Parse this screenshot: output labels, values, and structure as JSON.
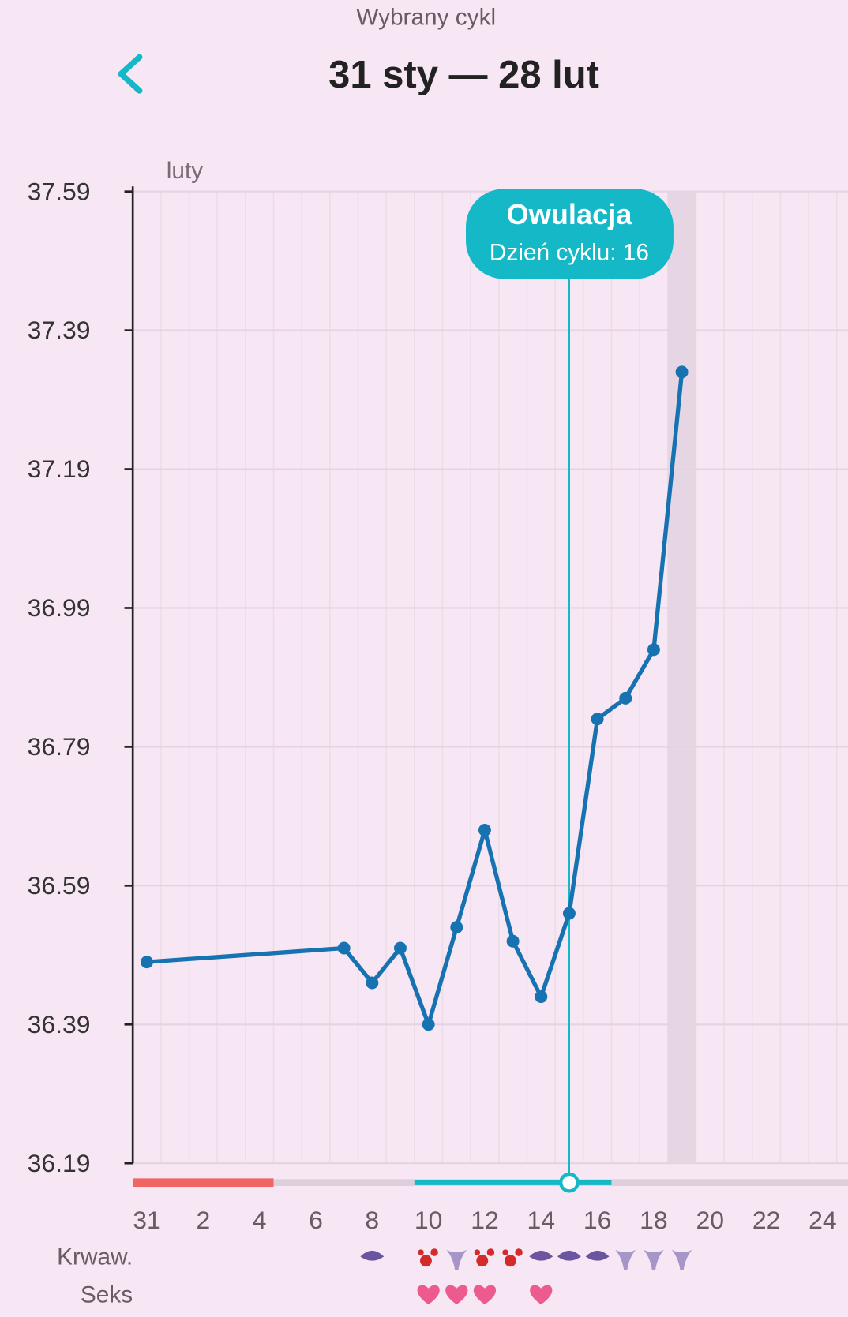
{
  "header": {
    "subtitle": "Wybrany cykl",
    "title": "31 sty — 28 lut"
  },
  "chart_data": {
    "type": "line",
    "month_label": "luty",
    "x": [
      0,
      7,
      8,
      9,
      10,
      11,
      12,
      13,
      14,
      15,
      16,
      17,
      18,
      19
    ],
    "values": [
      36.48,
      36.5,
      36.45,
      36.5,
      36.39,
      36.53,
      36.67,
      36.51,
      36.43,
      36.55,
      36.83,
      36.86,
      36.93,
      37.33
    ],
    "color": "#1672b0",
    "xlim": [
      -0.5,
      24.9
    ],
    "xticks": [
      {
        "value": 0,
        "label": "31"
      },
      2,
      4,
      6,
      8,
      10,
      12,
      14,
      16,
      18,
      20,
      22,
      24
    ],
    "ylim": [
      36.19,
      37.59
    ],
    "yticks": [
      36.19,
      36.39,
      36.59,
      36.79,
      36.99,
      37.19,
      37.39,
      37.59
    ],
    "grid": true,
    "annotation": {
      "title": "Owulacja",
      "text": "Dzień cyklu: 16",
      "x": 15
    },
    "today": 19,
    "period_range": [
      -0.5,
      4.5
    ],
    "fertile_range": [
      9.5,
      16.5
    ],
    "rows": [
      {
        "label": "Krwaw.",
        "light": [
          8,
          14,
          15,
          16
        ],
        "heavy": [
          10,
          12,
          13
        ],
        "mucus": [
          11,
          17,
          18,
          19
        ]
      },
      {
        "label": "Seks",
        "hearts": [
          10,
          11,
          12,
          14
        ]
      }
    ]
  }
}
